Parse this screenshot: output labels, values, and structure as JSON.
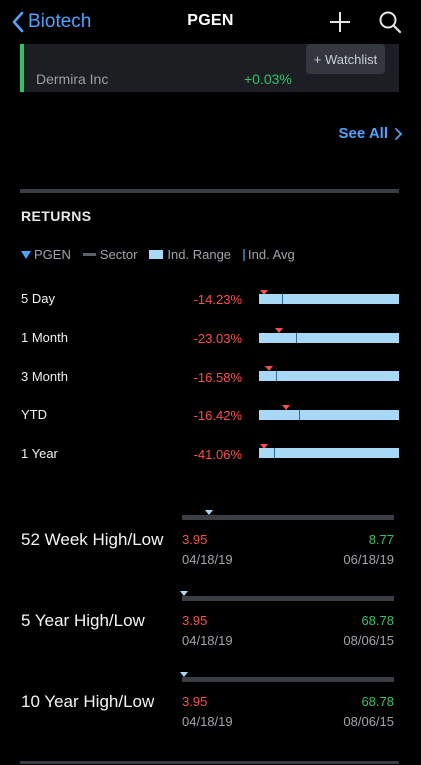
{
  "header": {
    "back_label": "Biotech",
    "title": "PGEN"
  },
  "card": {
    "name": "Dermira Inc",
    "change": "+0.03%",
    "watchlist_label": "+ Watchlist"
  },
  "see_all": "See All",
  "returns": {
    "title": "RETURNS",
    "legend": {
      "pgen": "PGEN",
      "sector": "Sector",
      "range": "Ind. Range",
      "avg": "Ind. Avg"
    },
    "rows": [
      {
        "label": "5 Day",
        "value": "-14.23%"
      },
      {
        "label": "1 Month",
        "value": "-23.03%"
      },
      {
        "label": "3 Month",
        "value": "-16.58%"
      },
      {
        "label": "YTD",
        "value": "-16.42%"
      },
      {
        "label": "1 Year",
        "value": "-41.06%"
      }
    ]
  },
  "high_low": [
    {
      "title": "52 Week High/Low",
      "low": "3.95",
      "low_date": "04/18/19",
      "high": "8.77",
      "high_date": "06/18/19"
    },
    {
      "title": "5 Year High/Low",
      "low": "3.95",
      "low_date": "04/18/19",
      "high": "68.78",
      "high_date": "08/06/15"
    },
    {
      "title": "10 Year High/Low",
      "low": "3.95",
      "low_date": "04/18/19",
      "high": "68.78",
      "high_date": "08/06/15"
    }
  ],
  "colors": {
    "accent": "#4aa3ff",
    "positive": "#2fc36a",
    "negative": "#ff4b4b",
    "range": "#a7d8f5"
  }
}
